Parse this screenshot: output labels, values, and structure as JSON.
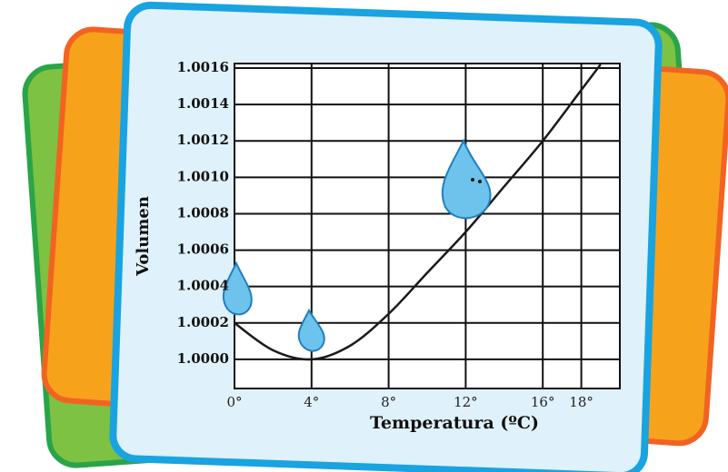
{
  "chart_data": {
    "type": "line",
    "x_label": "Temperatura  (ºC)",
    "y_label": "Volumen",
    "x": [
      0,
      2,
      4,
      6,
      8,
      10,
      12,
      14,
      16,
      18,
      19
    ],
    "series": [
      {
        "color": "#1a1a1a",
        "values": [
          1.0002,
          1.00005,
          1.0,
          1.000075,
          1.00025,
          1.000475,
          1.0007,
          1.00095,
          1.0012,
          1.00148,
          1.00162
        ]
      }
    ],
    "xlim": [
      0,
      20
    ],
    "xticks": [
      {
        "value": 0,
        "label": "0°"
      },
      {
        "value": 4,
        "label": "4°"
      },
      {
        "value": 8,
        "label": "8°"
      },
      {
        "value": 12,
        "label": "12°"
      },
      {
        "value": 16,
        "label": "16°"
      },
      {
        "value": 18,
        "label": "18°"
      }
    ],
    "ylim": [
      0.99984,
      1.001625
    ],
    "yticks": [
      {
        "value": 1.0,
        "label": "1.0000"
      },
      {
        "value": 1.0002,
        "label": "1.0002"
      },
      {
        "value": 1.0004,
        "label": "1.0004"
      },
      {
        "value": 1.0006,
        "label": "1.0006"
      },
      {
        "value": 1.0008,
        "label": "1.0008"
      },
      {
        "value": 1.001,
        "label": "1.0010"
      },
      {
        "value": 1.0012,
        "label": "1.0012"
      },
      {
        "value": 1.0014,
        "label": "1.0014"
      },
      {
        "value": 1.0016,
        "label": "1.0016"
      }
    ],
    "grid": true
  }
}
